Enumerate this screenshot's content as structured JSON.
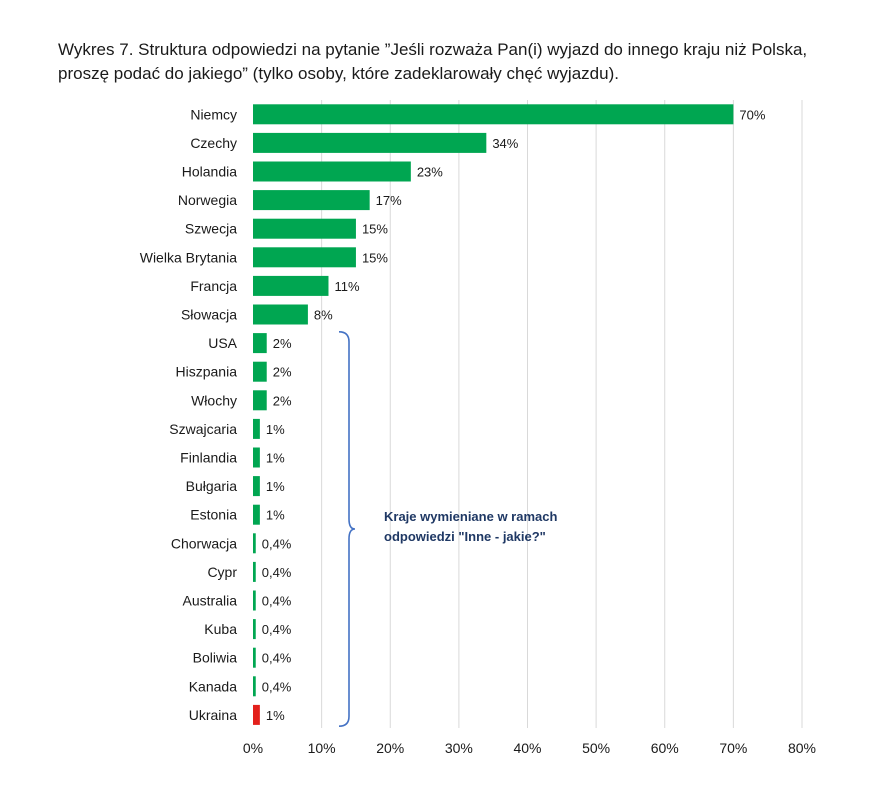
{
  "chart_data": {
    "type": "bar",
    "orientation": "horizontal",
    "title": "Wykres 7. Struktura odpowiedzi na pytanie ”Jeśli rozważa Pan(i) wyjazd do innego kraju niż Polska, proszę podać do jakiego” (tylko osoby, które zadeklarowały chęć wyjazdu).",
    "categories": [
      "Niemcy",
      "Czechy",
      "Holandia",
      "Norwegia",
      "Szwecja",
      "Wielka Brytania",
      "Francja",
      "Słowacja",
      "USA",
      "Hiszpania",
      "Włochy",
      "Szwajcaria",
      "Finlandia",
      "Bułgaria",
      "Estonia",
      "Chorwacja",
      "Cypr",
      "Australia",
      "Kuba",
      "Boliwia",
      "Kanada",
      "Ukraina"
    ],
    "values": [
      70,
      34,
      23,
      17,
      15,
      15,
      11,
      8,
      2,
      2,
      2,
      1,
      1,
      1,
      1,
      0.4,
      0.4,
      0.4,
      0.4,
      0.4,
      0.4,
      1
    ],
    "value_labels": [
      "70%",
      "34%",
      "23%",
      "17%",
      "15%",
      "15%",
      "11%",
      "8%",
      "2%",
      "2%",
      "2%",
      "1%",
      "1%",
      "1%",
      "1%",
      "0,4%",
      "0,4%",
      "0,4%",
      "0,4%",
      "0,4%",
      "0,4%",
      "1%"
    ],
    "xlim": [
      0,
      80
    ],
    "xticks": [
      "0%",
      "10%",
      "20%",
      "30%",
      "40%",
      "50%",
      "60%",
      "70%",
      "80%"
    ],
    "grid": "vertical",
    "colors": {
      "bar": "#00a651",
      "highlight": "#e3201b",
      "bracket": "#4472c4",
      "note": "#1f3864",
      "grid": "#d9d9d9"
    },
    "highlight_category": "Ukraina",
    "annotation": {
      "text_line1": "Kraje wymieniane w ramach",
      "text_line2": "odpowiedzi \"Inne - jakie?\""
    }
  }
}
